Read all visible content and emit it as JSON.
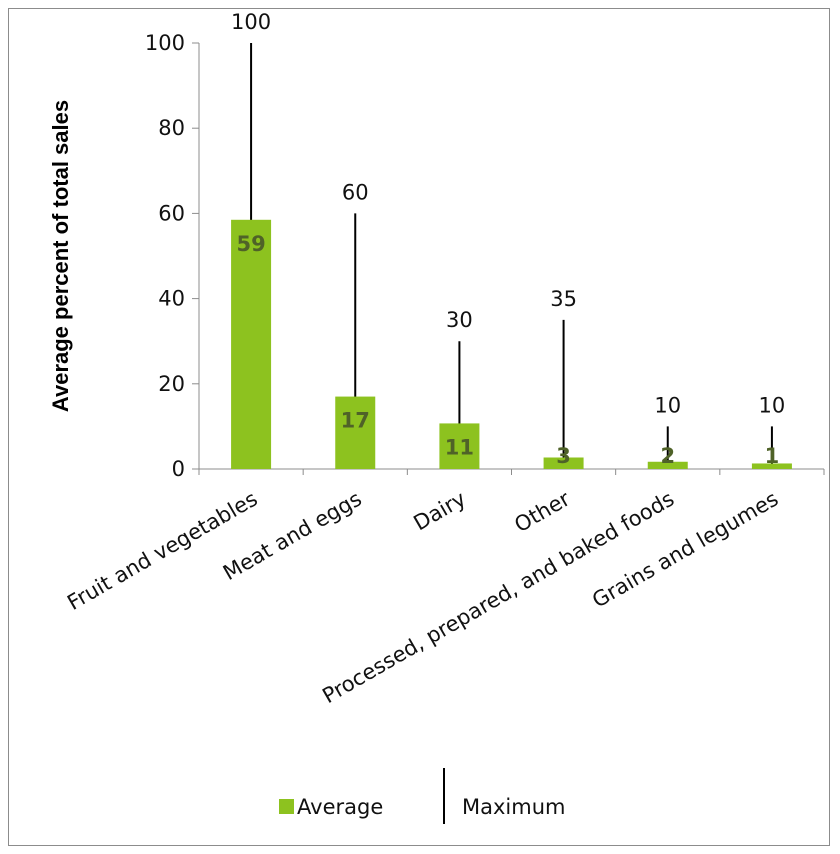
{
  "chart_data": {
    "type": "bar",
    "categories": [
      "Fruit and vegetables",
      "Meat and eggs",
      "Dairy",
      "Other",
      "Processed, prepared, and baked foods",
      "Grains and legumes"
    ],
    "series": [
      {
        "name": "Average",
        "mark": "bar",
        "values": [
          58.5,
          17,
          10.7,
          2.7,
          1.7,
          1.3
        ],
        "data_labels": [
          "59",
          "17",
          "11",
          "3",
          "2",
          "1"
        ]
      },
      {
        "name": "Maximum",
        "mark": "vertical-line",
        "values": [
          100,
          60,
          30,
          35,
          10,
          10
        ],
        "data_labels": [
          "100",
          "60",
          "30",
          "35",
          "10",
          "10"
        ]
      }
    ],
    "title": "",
    "xlabel": "",
    "ylabel": "Average percent of total sales",
    "ylim": [
      0,
      100
    ],
    "yticks": [
      0,
      20,
      40,
      60,
      80,
      100
    ],
    "ytick_labels": [
      "0",
      "20",
      "40",
      "60",
      "80",
      "100"
    ],
    "grid": false,
    "legend_position": "bottom",
    "colors": {
      "bar": "#8dc21f",
      "bar_label": "#4f6228",
      "line": "#000000",
      "axis": "#8c8c8c",
      "border": "#8c8c8c"
    }
  }
}
